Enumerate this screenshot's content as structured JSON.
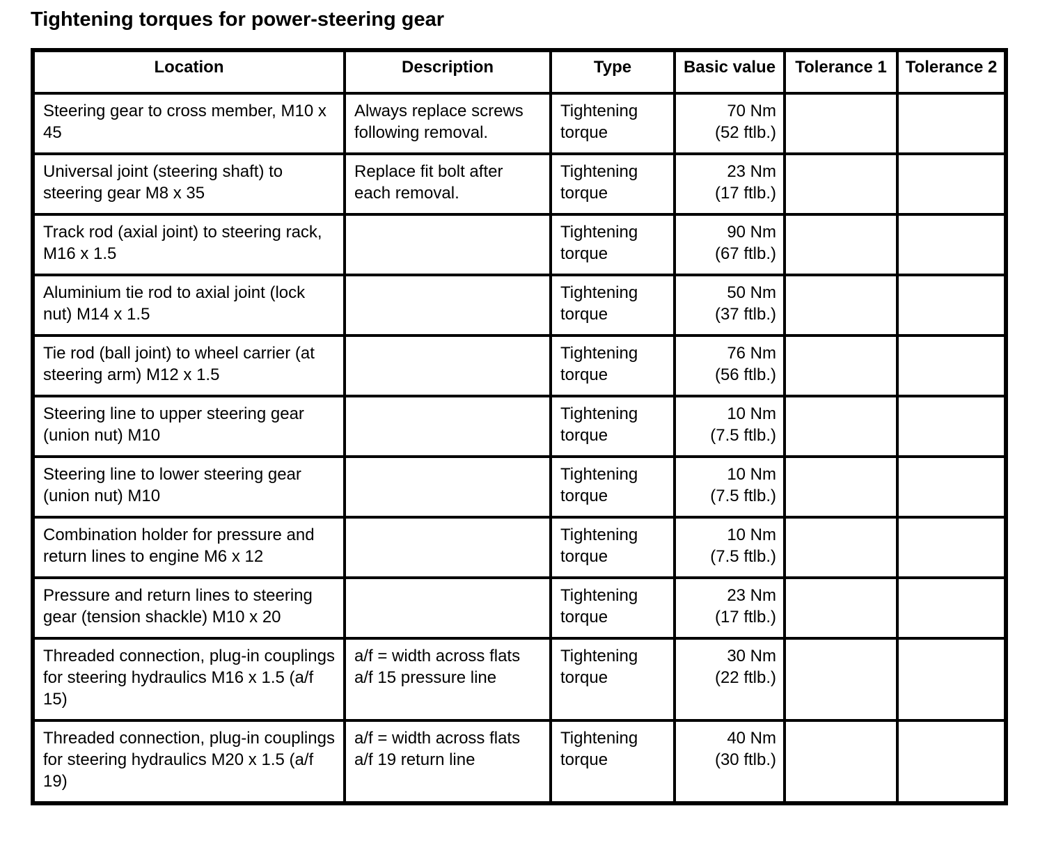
{
  "title": "Tightening torques for power-steering gear",
  "table": {
    "columns": [
      {
        "key": "location",
        "label": "Location"
      },
      {
        "key": "description",
        "label": "Description"
      },
      {
        "key": "type",
        "label": "Type"
      },
      {
        "key": "basic_value",
        "label": "Basic value"
      },
      {
        "key": "tolerance_1",
        "label": "Tolerance 1"
      },
      {
        "key": "tolerance_2",
        "label": "Tolerance 2"
      }
    ],
    "rows": [
      {
        "location": "Steering gear to cross member, M10 x 45",
        "description": "Always replace screws following removal.",
        "type": "Tightening torque",
        "basic_value": "70 Nm\n(52 ftlb.)",
        "tolerance_1": "",
        "tolerance_2": ""
      },
      {
        "location": "Universal joint (steering shaft) to steering gear M8 x 35",
        "description": "Replace fit bolt after each removal.",
        "type": "Tightening torque",
        "basic_value": "23 Nm\n(17 ftlb.)",
        "tolerance_1": "",
        "tolerance_2": ""
      },
      {
        "location": "Track rod (axial joint) to steering rack, M16 x 1.5",
        "description": "",
        "type": "Tightening torque",
        "basic_value": "90 Nm\n(67 ftlb.)",
        "tolerance_1": "",
        "tolerance_2": ""
      },
      {
        "location": "Aluminium tie rod to axial joint (lock nut) M14 x 1.5",
        "description": "",
        "type": "Tightening torque",
        "basic_value": "50 Nm\n(37 ftlb.)",
        "tolerance_1": "",
        "tolerance_2": ""
      },
      {
        "location": "Tie rod (ball joint) to wheel carrier (at steering arm) M12 x 1.5",
        "description": "",
        "type": "Tightening torque",
        "basic_value": "76 Nm\n(56 ftlb.)",
        "tolerance_1": "",
        "tolerance_2": ""
      },
      {
        "location": "Steering line to upper steering gear (union nut) M10",
        "description": "",
        "type": "Tightening torque",
        "basic_value": "10 Nm\n(7.5 ftlb.)",
        "tolerance_1": "",
        "tolerance_2": ""
      },
      {
        "location": "Steering line to lower steering gear (union nut) M10",
        "description": "",
        "type": "Tightening torque",
        "basic_value": "10 Nm\n(7.5 ftlb.)",
        "tolerance_1": "",
        "tolerance_2": ""
      },
      {
        "location": "Combination holder for pressure and return lines to engine M6 x 12",
        "description": "",
        "type": "Tightening torque",
        "basic_value": "10 Nm\n(7.5 ftlb.)",
        "tolerance_1": "",
        "tolerance_2": ""
      },
      {
        "location": "Pressure and return lines to steering gear (tension shackle) M10 x 20",
        "description": "",
        "type": "Tightening torque",
        "basic_value": "23 Nm\n(17 ftlb.)",
        "tolerance_1": "",
        "tolerance_2": ""
      },
      {
        "location": "Threaded connection, plug-in couplings for steering hydraulics M16 x 1.5 (a/f 15)",
        "description": "a/f = width across flats a/f 15 pressure line",
        "type": "Tightening torque",
        "basic_value": "30 Nm\n(22 ftlb.)",
        "tolerance_1": "",
        "tolerance_2": ""
      },
      {
        "location": "Threaded connection, plug-in couplings for steering hydraulics M20 x 1.5 (a/f 19)",
        "description": "a/f = width across flats a/f 19 return line",
        "type": "Tightening torque",
        "basic_value": "40 Nm\n(30 ftlb.)",
        "tolerance_1": "",
        "tolerance_2": ""
      }
    ]
  }
}
